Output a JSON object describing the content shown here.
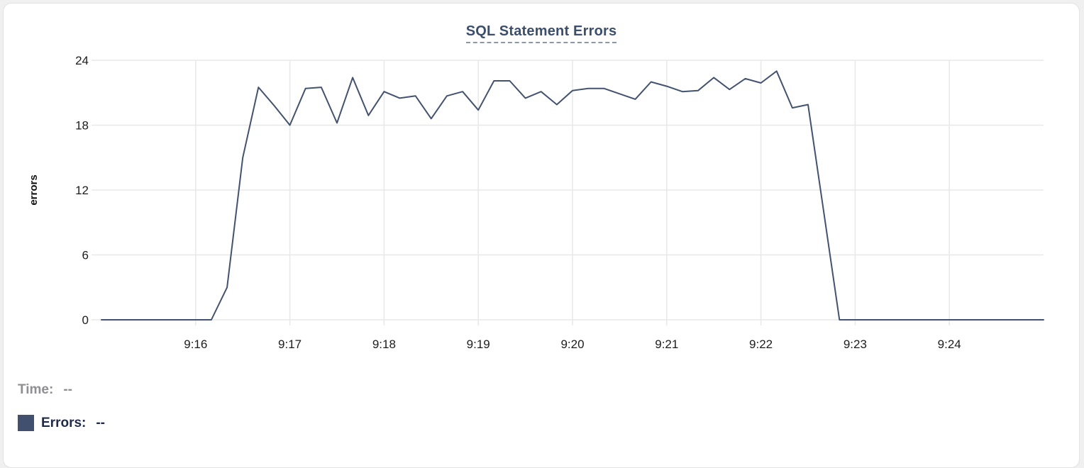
{
  "legend": {
    "time_label": "Time:",
    "time_value": "--",
    "errors_label": "Errors:",
    "errors_value": "--"
  },
  "colors": {
    "series_line": "#43526e",
    "swatch": "#40506e",
    "title": "#3b4e6b",
    "title_underline": "#8c96ad",
    "grid": "#e8e8e8",
    "tick_text": "#1c1c1e",
    "legend_time": "#8e8e93",
    "legend_errors": "#1e2a48"
  },
  "chart_data": {
    "type": "line",
    "title": "SQL Statement Errors",
    "xlabel": "",
    "ylabel": "errors",
    "ylim": [
      0,
      24
    ],
    "yticks": [
      0,
      6,
      12,
      18,
      24
    ],
    "grid": true,
    "legend_position": "bottom-left",
    "x_start_time": "9:15:00",
    "x_end_time": "9:25:00",
    "point_interval_seconds": 10,
    "xtick_labels": [
      "9:16",
      "9:17",
      "9:18",
      "9:19",
      "9:20",
      "9:21",
      "9:22",
      "9:23",
      "9:24"
    ],
    "xtick_minutes_from_start": [
      1,
      2,
      3,
      4,
      5,
      6,
      7,
      8,
      9
    ],
    "series": [
      {
        "name": "Errors",
        "values": [
          0,
          0,
          0,
          0,
          0,
          0,
          0,
          0,
          3,
          15,
          21.5,
          19.8,
          18,
          21.4,
          21.5,
          18.2,
          22.4,
          18.9,
          21.1,
          20.5,
          20.7,
          18.6,
          20.7,
          21.1,
          19.4,
          22.1,
          22.1,
          20.5,
          21.1,
          19.9,
          21.2,
          21.4,
          21.4,
          20.9,
          20.4,
          22,
          21.6,
          21.1,
          21.2,
          22.4,
          21.3,
          22.3,
          21.9,
          23,
          19.6,
          19.9,
          10,
          0,
          0,
          0,
          0,
          0,
          0,
          0,
          0,
          0,
          0,
          0,
          0,
          0,
          0
        ]
      }
    ]
  }
}
